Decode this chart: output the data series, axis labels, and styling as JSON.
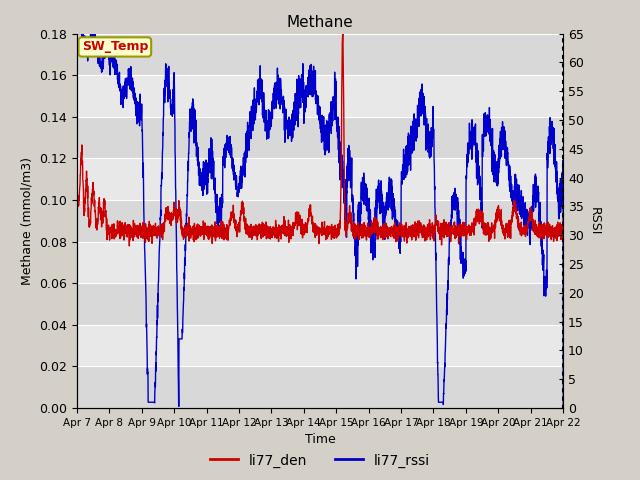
{
  "title": "Methane",
  "ylabel_left": "Methane (mmol/m3)",
  "ylabel_right": "RSSI",
  "xlabel": "Time",
  "ylim_left": [
    0.0,
    0.18
  ],
  "ylim_right": [
    0,
    65
  ],
  "yticks_left": [
    0.0,
    0.02,
    0.04,
    0.06,
    0.08,
    0.1,
    0.12,
    0.14,
    0.16,
    0.18
  ],
  "yticks_right": [
    0,
    5,
    10,
    15,
    20,
    25,
    30,
    35,
    40,
    45,
    50,
    55,
    60,
    65
  ],
  "xtick_labels": [
    "Apr 7",
    "Apr 8",
    "Apr 9",
    "Apr 10",
    "Apr 11",
    "Apr 12",
    "Apr 13",
    "Apr 14",
    "Apr 15",
    "Apr 16",
    "Apr 17",
    "Apr 18",
    "Apr 19",
    "Apr 20",
    "Apr 21",
    "Apr 22"
  ],
  "color_den": "#cc0000",
  "color_rssi": "#0000cc",
  "legend_den": "li77_den",
  "legend_rssi": "li77_rssi",
  "annotation_box": "SW_Temp",
  "annotation_color": "#cc0000",
  "annotation_bg": "#ffffcc",
  "annotation_edge": "#999900",
  "fig_bg": "#d4d0c8",
  "plot_bg_dark": "#d8d8d8",
  "plot_bg_light": "#e8e8e8",
  "linewidth": 1.0,
  "title_fontsize": 11,
  "axis_fontsize": 9,
  "tick_fontsize": 9
}
